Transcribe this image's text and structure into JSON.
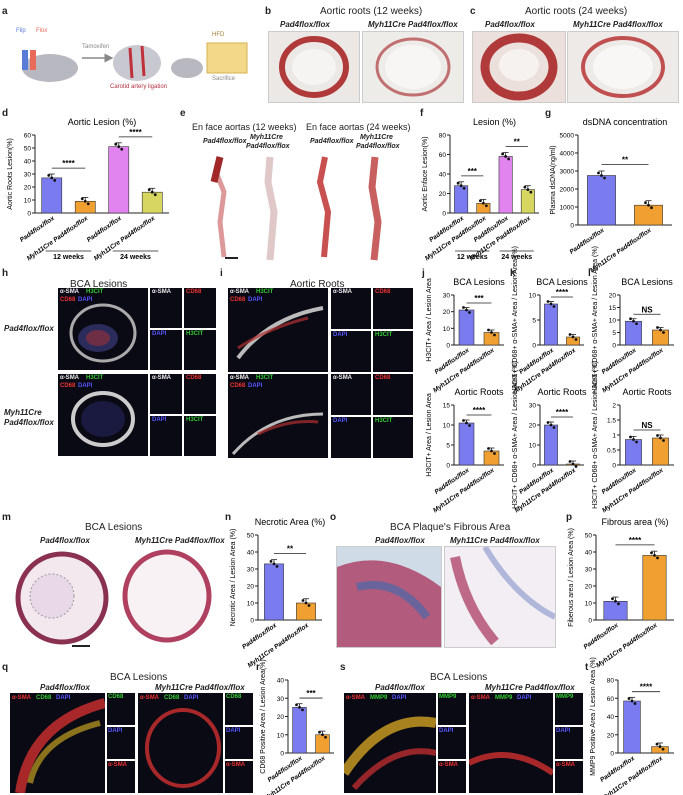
{
  "labels": {
    "a": "a",
    "b": "b",
    "c": "c",
    "d": "d",
    "e": "e",
    "f": "f",
    "g": "g",
    "h": "h",
    "i": "i",
    "j": "j",
    "k": "k",
    "l": "l",
    "m": "m",
    "n": "n",
    "o": "o",
    "p": "p",
    "q": "q",
    "r": "r",
    "s": "s",
    "t": "t"
  },
  "panel_a": {
    "items": [
      "Flip",
      "Flox",
      "Tamoxifen",
      "Carotid artery ligation",
      "HFD",
      "Sacrifice"
    ]
  },
  "panel_b": {
    "title": "Aortic roots (12 weeks)",
    "left": "Pad4flox/flox",
    "right": "Myh11Cre Pad4flox/flox"
  },
  "panel_c": {
    "title": "Aortic roots (24 weeks)",
    "left": "Pad4flox/flox",
    "right": "Myh11Cre Pad4flox/flox"
  },
  "panel_e": {
    "title1": "En face aortas (12 weeks)",
    "title2": "En face aortas (24 weeks)",
    "g1": "Pad4flox/flox",
    "g2a": "Myh11Cre",
    "g2b": "Pad4flox/flox"
  },
  "panel_h": {
    "title": "BCA Lesions",
    "row1": "Pad4flox/flox",
    "row2a": "Myh11Cre",
    "row2b": "Pad4flox/flox",
    "m1": "α-SMA",
    "m2": "H3CIT",
    "m3": "CD68",
    "m4": "DAPI"
  },
  "panel_i": {
    "title": "Aortic Roots"
  },
  "panel_m": {
    "title": "BCA Lesions",
    "left": "Pad4flox/flox",
    "right": "Myh11Cre Pad4flox/flox"
  },
  "panel_o": {
    "title": "BCA Plaque's Fibrous Area",
    "left": "Pad4flox/flox",
    "right": "Myh11Cre Pad4flox/flox"
  },
  "panel_q": {
    "title": "BCA Lesions",
    "left": "Pad4flox/flox",
    "right": "Myh11Cre Pad4flox/flox",
    "m1": "α-SMA",
    "m2": "CD68",
    "m3": "DAPI"
  },
  "panel_s": {
    "title": "BCA Lesions",
    "left": "Pad4flox/flox",
    "right": "Myh11Cre Pad4flox/flox",
    "m1": "α-SMA",
    "m2": "MMP9",
    "m3": "DAPI"
  },
  "colors": {
    "blue": "#7b7bf0",
    "orange": "#f0a030",
    "pink": "#e184f0",
    "olive": "#d6d660",
    "red": "#c0303a"
  },
  "chart_data": [
    {
      "panel": "d",
      "type": "bar",
      "title": "Aortic Lesion (%)",
      "ylabel": "Aortic Roots Lesion(%)",
      "ylim": [
        0,
        60
      ],
      "yticks": [
        0,
        10,
        20,
        30,
        40,
        50,
        60
      ],
      "categories": [
        "Pad4flox/flox",
        "Myh11Cre Pad4flox/flox",
        "Pad4flox/flox",
        "Myh11Cre Pad4flox/flox"
      ],
      "values": [
        27,
        9,
        51,
        16
      ],
      "groups": [
        "12 weeks",
        "24 weeks"
      ],
      "sig": [
        "****",
        "****"
      ]
    },
    {
      "panel": "f",
      "type": "bar",
      "title": "Lesion (%)",
      "ylabel": "Aortic Enface Lesion(%)",
      "ylim": [
        0,
        80
      ],
      "yticks": [
        0,
        20,
        40,
        60,
        80
      ],
      "categories": [
        "Pad4flox/flox",
        "Myh11Cre Pad4flox/flox",
        "Pad4flox/flox",
        "Myh11Cre Pad4flox/flox"
      ],
      "values": [
        28,
        10,
        58,
        24
      ],
      "groups": [
        "12 weeks",
        "24 weeks"
      ],
      "sig": [
        "***",
        "**"
      ]
    },
    {
      "panel": "g",
      "type": "bar",
      "title": "dsDNA concentration",
      "ylabel": "Plasma dsDNA(ng/ml)",
      "ylim": [
        0,
        5000
      ],
      "yticks": [
        0,
        1000,
        2000,
        3000,
        4000,
        5000
      ],
      "categories": [
        "Pad4flox/flox",
        "Myh11Cre Pad4flox/flox"
      ],
      "values": [
        2750,
        1100
      ],
      "sig": [
        "**"
      ]
    },
    {
      "panel": "j1",
      "type": "bar",
      "title": "BCA Lesions",
      "ylabel": "H3CIT+ Area / Lesion Area",
      "ylim": [
        0,
        30
      ],
      "yticks": [
        0,
        10,
        20,
        30
      ],
      "categories": [
        "Pad4flox/flox",
        "Myh11Cre Pad4flox/flox"
      ],
      "values": [
        21,
        7.5
      ],
      "sig": [
        "***"
      ]
    },
    {
      "panel": "k1",
      "type": "bar",
      "title": "BCA Lesions",
      "ylabel": "H3CIT+ CD68+ α-SMA+ Area / Lesion Area (%)",
      "ylim": [
        0,
        10
      ],
      "yticks": [
        0,
        5,
        10
      ],
      "categories": [
        "Pad4flox/flox",
        "Myh11Cre Pad4flox/flox"
      ],
      "values": [
        8.2,
        1.6
      ],
      "sig": [
        "****"
      ]
    },
    {
      "panel": "l1",
      "type": "bar",
      "title": "BCA Lesions",
      "ylabel": "H3CIT+ CD68+ α-SMA+ Area / Lesion Area (%)",
      "ylim": [
        0,
        20
      ],
      "yticks": [
        0,
        5,
        10,
        15,
        20
      ],
      "categories": [
        "Pad4flox/flox",
        "Myh11Cre Pad4flox/flox"
      ],
      "values": [
        9.5,
        6
      ],
      "sig": [
        "NS"
      ]
    },
    {
      "panel": "j2",
      "type": "bar",
      "title": "Aortic Roots",
      "ylabel": "H3CIT+ Area / Lesion Area",
      "ylim": [
        0,
        15
      ],
      "yticks": [
        0,
        5,
        10,
        15
      ],
      "categories": [
        "Pad4flox/flox",
        "Myh11Cre Pad4flox/flox"
      ],
      "values": [
        10.5,
        3.5
      ],
      "sig": [
        "****"
      ]
    },
    {
      "panel": "k2",
      "type": "bar",
      "title": "Aortic Roots",
      "ylabel": "H3CIT+ CD68+ α-SMA+ Area / Lesion Area (%)",
      "ylim": [
        0,
        30
      ],
      "yticks": [
        0,
        10,
        20,
        30
      ],
      "categories": [
        "Pad4flox/flox",
        "Myh11Cre Pad4flox/flox"
      ],
      "values": [
        20,
        0.5
      ],
      "sig": [
        "****"
      ]
    },
    {
      "panel": "l2",
      "type": "bar",
      "title": "Aortic Roots",
      "ylabel": "H3CIT+ CD68+ α-SMA+ Area / Lesion Area (%)",
      "ylim": [
        0,
        2
      ],
      "yticks": [
        0,
        0.5,
        1,
        1.5,
        2
      ],
      "categories": [
        "Pad4flox/flox",
        "Myh11Cre Pad4flox/flox"
      ],
      "values": [
        0.85,
        0.9
      ],
      "sig": [
        "NS"
      ]
    },
    {
      "panel": "n",
      "type": "bar",
      "title": "Necrotic Area (%)",
      "ylabel": "Necrotic Area / Lesion Area (%)",
      "ylim": [
        0,
        50
      ],
      "yticks": [
        0,
        10,
        20,
        30,
        40,
        50
      ],
      "categories": [
        "Pad4flox/flox",
        "Myh11Cre Pad4flox/flox"
      ],
      "values": [
        33,
        10
      ],
      "sig": [
        "**"
      ]
    },
    {
      "panel": "p",
      "type": "bar",
      "title": "Fibrous area (%)",
      "ylabel": "Fiberous area / Lesion Area (%)",
      "ylim": [
        0,
        50
      ],
      "yticks": [
        0,
        10,
        20,
        30,
        40,
        50
      ],
      "categories": [
        "Pad4flox/flox",
        "Myh11Cre Pad4flox/flox"
      ],
      "values": [
        11,
        38
      ],
      "sig": [
        "****"
      ]
    },
    {
      "panel": "r",
      "type": "bar",
      "title": "",
      "ylabel": "CD68 Positive Area / Lesion Area(%)",
      "ylim": [
        0,
        40
      ],
      "yticks": [
        0,
        10,
        20,
        30,
        40
      ],
      "categories": [
        "Pad4flox/flox",
        "Myh11Cre Pad4flox/flox"
      ],
      "values": [
        25,
        10
      ],
      "sig": [
        "***"
      ]
    },
    {
      "panel": "t",
      "type": "bar",
      "title": "",
      "ylabel": "MMP9 Positive Area / Lesion Area (%)",
      "ylim": [
        0,
        80
      ],
      "yticks": [
        0,
        20,
        40,
        60,
        80
      ],
      "categories": [
        "Pad4flox/flox",
        "Myh11Cre Pad4flox/flox"
      ],
      "values": [
        57,
        7
      ],
      "sig": [
        "****"
      ]
    }
  ]
}
